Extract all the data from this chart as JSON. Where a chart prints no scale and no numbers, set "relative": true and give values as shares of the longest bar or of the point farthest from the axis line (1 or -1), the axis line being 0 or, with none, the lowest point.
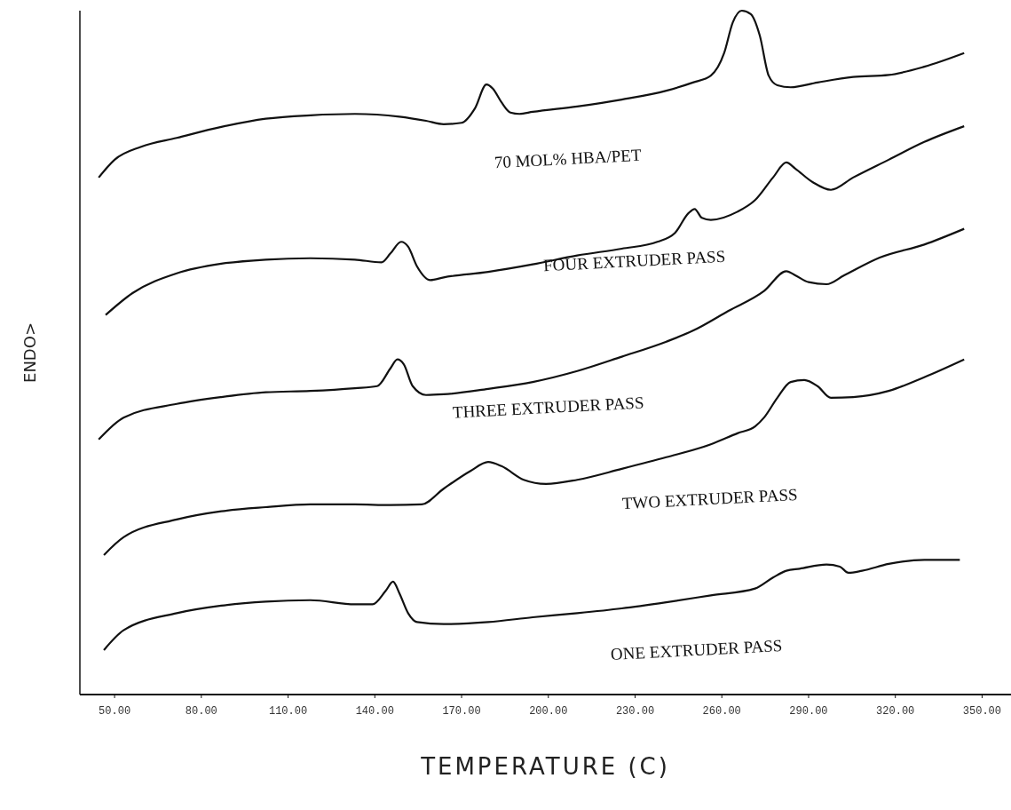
{
  "chart_data": {
    "type": "line",
    "relative": true,
    "xlabel": "TEMPERATURE (C)",
    "ylabel": "ENDO>",
    "xlim": [
      38,
      360
    ],
    "xticks": [
      {
        "value": 50,
        "label": "50.00"
      },
      {
        "value": 80,
        "label": "80.00"
      },
      {
        "value": 110,
        "label": "110.00"
      },
      {
        "value": 140,
        "label": "140.00"
      },
      {
        "value": 170,
        "label": "170.00"
      },
      {
        "value": 200,
        "label": "200.00"
      },
      {
        "value": 230,
        "label": "230.00"
      },
      {
        "value": 260,
        "label": "260.00"
      },
      {
        "value": 290,
        "label": "290.00"
      },
      {
        "value": 320,
        "label": "320.00"
      },
      {
        "value": 350,
        "label": "350.00"
      }
    ],
    "grid": false,
    "marker": "none",
    "line_style": "solid",
    "series": [
      {
        "name": "70 MOL% HBA/PET",
        "color": "#111111",
        "x": [
          44.5,
          50,
          59.2,
          71.5,
          86.9,
          102.3,
          117.7,
          133.1,
          148.5,
          157.7,
          163.8,
          170,
          174.6,
          178.6,
          180.8,
          183.8,
          186.9,
          190,
          194.6,
          210,
          225.4,
          240.8,
          250,
          256.2,
          260.8,
          263.8,
          266.9,
          270,
          273.1,
          276.2,
          279.2,
          283.8,
          293.1,
          305.4,
          317.7,
          330,
          343.8
        ],
        "values": [
          0.756,
          0.782,
          0.801,
          0.814,
          0.83,
          0.842,
          0.847,
          0.849,
          0.845,
          0.839,
          0.834,
          0.836,
          0.857,
          0.892,
          0.886,
          0.866,
          0.851,
          0.849,
          0.852,
          0.86,
          0.87,
          0.883,
          0.895,
          0.905,
          0.938,
          0.983,
          1,
          0.995,
          0.964,
          0.905,
          0.891,
          0.888,
          0.895,
          0.903,
          0.906,
          0.918,
          0.938
        ]
      },
      {
        "name": "FOUR EXTRUDER PASS",
        "color": "#111111",
        "x": [
          46.9,
          56.2,
          71.5,
          86.9,
          102.3,
          117.7,
          133.1,
          142.3,
          145.4,
          149.1,
          151.5,
          154.6,
          159.2,
          163.8,
          179.2,
          194.6,
          210,
          225.4,
          237.7,
          243.8,
          248.5,
          250.6,
          253.1,
          256.2,
          265.4,
          271.5,
          277.7,
          282.3,
          285.4,
          291.5,
          297.7,
          305.4,
          317.7,
          330,
          343.8
        ],
        "values": [
          0.555,
          0.587,
          0.616,
          0.63,
          0.636,
          0.638,
          0.636,
          0.632,
          0.645,
          0.662,
          0.655,
          0.626,
          0.606,
          0.61,
          0.618,
          0.629,
          0.642,
          0.652,
          0.662,
          0.675,
          0.704,
          0.71,
          0.697,
          0.694,
          0.706,
          0.723,
          0.756,
          0.778,
          0.769,
          0.749,
          0.738,
          0.756,
          0.782,
          0.808,
          0.831
        ]
      },
      {
        "name": "THREE EXTRUDER PASS",
        "color": "#111111",
        "x": [
          44.5,
          53.1,
          71.5,
          86.9,
          102.3,
          117.7,
          133.1,
          140.8,
          145.4,
          147.8,
          150,
          153.1,
          157.7,
          163.8,
          179.2,
          194.6,
          210,
          225.4,
          240.8,
          250,
          262.3,
          274.6,
          282.3,
          285.4,
          290,
          296.2,
          302.3,
          314.6,
          330,
          343.8
        ],
        "values": [
          0.373,
          0.405,
          0.425,
          0.435,
          0.442,
          0.444,
          0.448,
          0.451,
          0.477,
          0.49,
          0.483,
          0.451,
          0.438,
          0.439,
          0.447,
          0.457,
          0.473,
          0.494,
          0.516,
          0.532,
          0.561,
          0.59,
          0.619,
          0.613,
          0.603,
          0.6,
          0.613,
          0.639,
          0.658,
          0.681
        ]
      },
      {
        "name": "TWO EXTRUDER PASS",
        "color": "#111111",
        "x": [
          46.3,
          53.1,
          71.5,
          86.9,
          102.3,
          117.7,
          133.1,
          145.4,
          156.2,
          163.8,
          173.1,
          179.2,
          183.8,
          191.5,
          199.2,
          210,
          225.4,
          240.8,
          256.2,
          265.4,
          271.5,
          274.6,
          279.2,
          283.8,
          288.5,
          293.1,
          297.7,
          305.4,
          317.7,
          330,
          343.8
        ],
        "values": [
          0.204,
          0.23,
          0.256,
          0.268,
          0.274,
          0.278,
          0.278,
          0.277,
          0.278,
          0.301,
          0.327,
          0.34,
          0.334,
          0.314,
          0.308,
          0.314,
          0.33,
          0.347,
          0.366,
          0.382,
          0.392,
          0.405,
          0.434,
          0.457,
          0.46,
          0.451,
          0.434,
          0.435,
          0.444,
          0.464,
          0.49
        ]
      },
      {
        "name": "ONE EXTRUDER PASS",
        "color": "#111111",
        "x": [
          46.3,
          53.1,
          71.5,
          86.9,
          102.3,
          117.7,
          133.1,
          139.2,
          143.8,
          146.3,
          148.5,
          151.5,
          154.6,
          163.8,
          179.2,
          194.6,
          210,
          225.4,
          240.8,
          256.2,
          271.5,
          277.7,
          282.3,
          286.9,
          296.2,
          300.8,
          303.8,
          308.5,
          317.7,
          330,
          342.3
        ],
        "values": [
          0.065,
          0.094,
          0.119,
          0.13,
          0.136,
          0.138,
          0.132,
          0.132,
          0.152,
          0.165,
          0.148,
          0.119,
          0.106,
          0.103,
          0.106,
          0.113,
          0.119,
          0.126,
          0.135,
          0.145,
          0.155,
          0.171,
          0.181,
          0.184,
          0.19,
          0.187,
          0.178,
          0.181,
          0.191,
          0.197,
          0.197
        ]
      }
    ]
  }
}
